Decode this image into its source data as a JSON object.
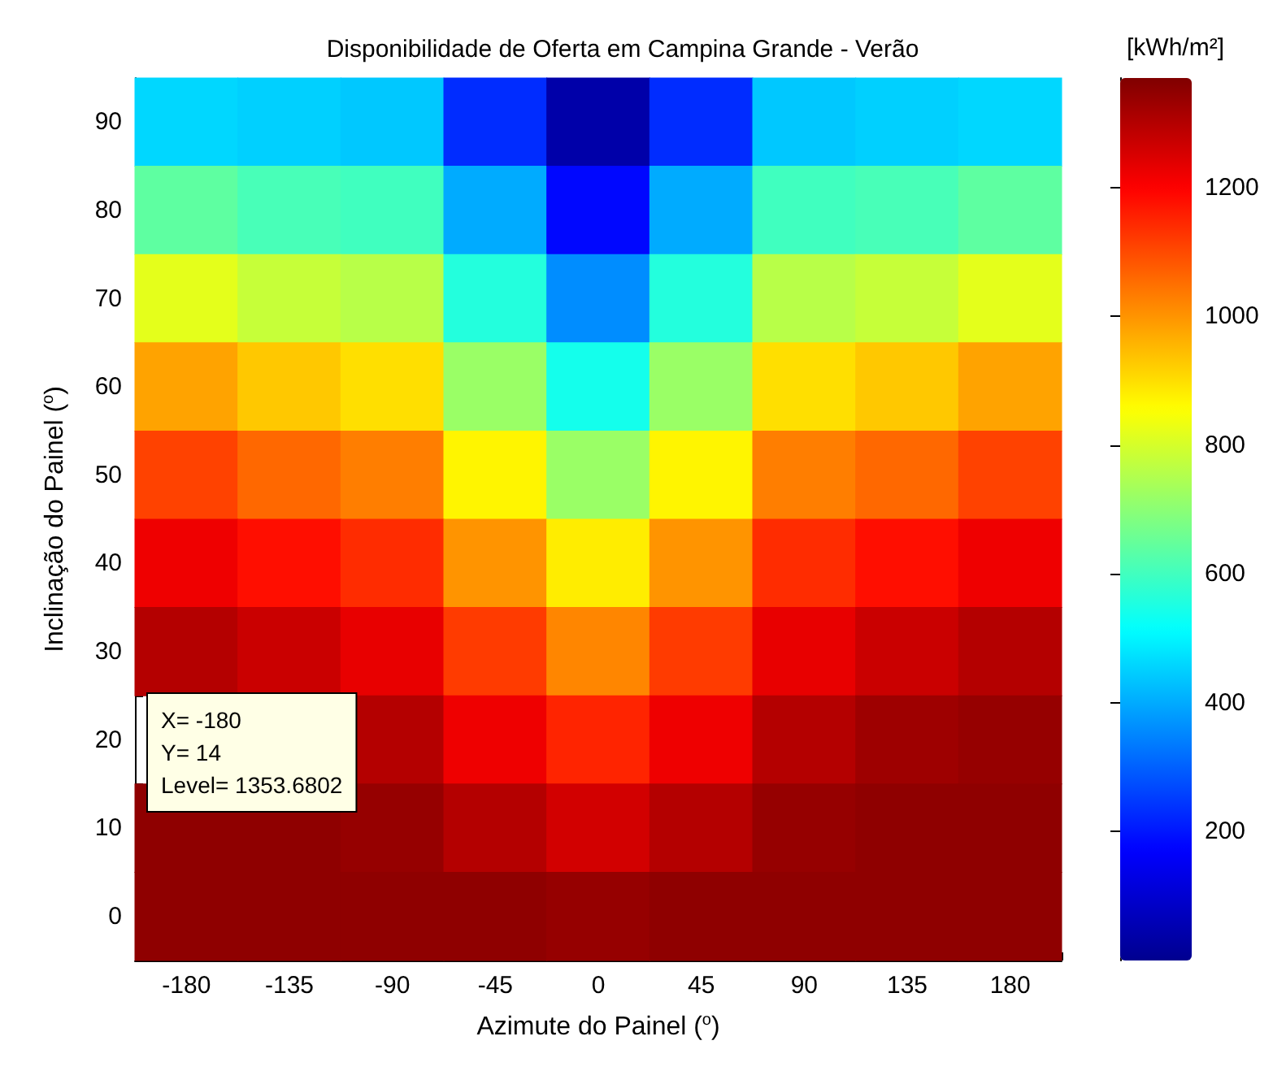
{
  "chart_data": {
    "type": "heatmap",
    "title": "Disponibilidade de Oferta em Campina Grande - Verão",
    "xlabel": "Azimute do Painel ($^{o}$)",
    "ylabel": "Inclinação do Painel ($^{o}$)",
    "clabel": "[kWh/m²]",
    "categories": [
      "-180",
      "-135",
      "-90",
      "-45",
      "0",
      "45",
      "90",
      "135",
      "180"
    ],
    "y_categories": [
      "90",
      "80",
      "70",
      "60",
      "50",
      "40",
      "30",
      "20",
      "10",
      "0"
    ],
    "cells": [
      [
        460,
        450,
        440,
        230,
        40,
        230,
        440,
        450,
        460
      ],
      [
        640,
        610,
        600,
        400,
        180,
        400,
        600,
        610,
        640
      ],
      [
        820,
        780,
        760,
        560,
        360,
        560,
        760,
        780,
        820
      ],
      [
        980,
        930,
        900,
        720,
        540,
        720,
        900,
        930,
        980
      ],
      [
        1110,
        1060,
        1030,
        870,
        720,
        870,
        1030,
        1060,
        1110
      ],
      [
        1220,
        1180,
        1140,
        1000,
        880,
        1000,
        1140,
        1180,
        1220
      ],
      [
        1300,
        1270,
        1230,
        1120,
        1020,
        1120,
        1230,
        1270,
        1300
      ],
      [
        null,
        null,
        1300,
        1220,
        1150,
        1220,
        1300,
        1330,
        1340
      ],
      [
        1350,
        1350,
        1340,
        1300,
        1260,
        1300,
        1340,
        1350,
        1350
      ],
      [
        1350,
        1350,
        1350,
        1350,
        1340,
        1350,
        1350,
        1350,
        1350
      ]
    ],
    "clim": [
      0,
      1370
    ],
    "cticks": [
      200,
      400,
      600,
      800,
      1000,
      1200
    ],
    "annotations": [
      "X= -180\nY= 14\nLevel= 1353.6802"
    ]
  }
}
